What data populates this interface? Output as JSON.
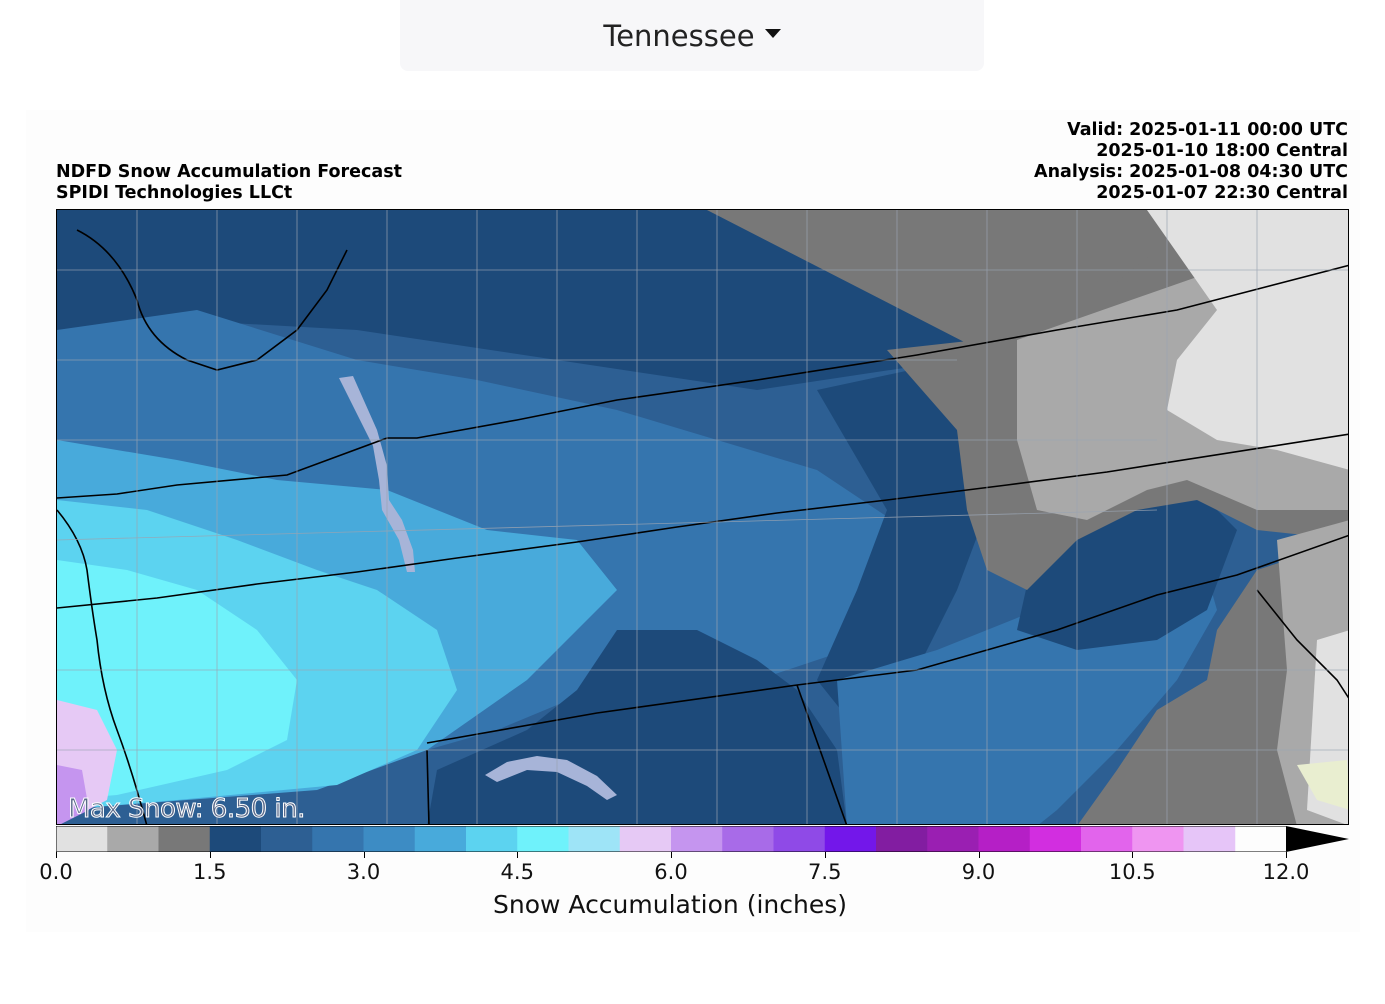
{
  "region_selector": {
    "selected": "Tennessee"
  },
  "figure": {
    "title_left": [
      "NDFD Snow Accumulation Forecast",
      "SPIDI Technologies LLCt"
    ],
    "title_right": [
      "Valid: 2025-01-11 00:00 UTC",
      "2025-01-10 18:00 Central",
      "Analysis: 2025-01-08 04:30 UTC",
      "2025-01-07 22:30 Central"
    ],
    "max_snow": "Max Snow: 6.50 in."
  },
  "colorbar": {
    "label": "Snow Accumulation (inches)",
    "min": 0.0,
    "max": 12.0,
    "step": 0.5,
    "extend": "max",
    "tick_labels": [
      "0.0",
      "1.5",
      "3.0",
      "4.5",
      "6.0",
      "7.5",
      "9.0",
      "10.5",
      "12.0"
    ],
    "tick_values": [
      0.0,
      1.5,
      3.0,
      4.5,
      6.0,
      7.5,
      9.0,
      10.5,
      12.0
    ],
    "colors": [
      "#e1e1e1",
      "#a9a9a9",
      "#787878",
      "#1d4a7a",
      "#2d5f93",
      "#3575ae",
      "#3d8cc4",
      "#48aadb",
      "#5cd3f0",
      "#6ff2fb",
      "#9ee4f7",
      "#e6c9f5",
      "#c595ef",
      "#a86be8",
      "#8f4ae7",
      "#7317ea",
      "#821da1",
      "#9a1fb2",
      "#b51fc6",
      "#d22ee0",
      "#e264ec",
      "#ef95f1",
      "#e6c5f8"
    ],
    "extend_color": "#000000"
  },
  "map": {
    "legend_colors": {
      "light_gray": "#e1e1e1",
      "gray": "#a9a9a9",
      "dark_gray": "#787878",
      "navy": "#1d4a7a",
      "blue": "#3575ae",
      "sky": "#48aadb",
      "cyan": "#6ff2fb",
      "lavender": "#e6c9f5",
      "lake": "#a7b4d8"
    }
  }
}
